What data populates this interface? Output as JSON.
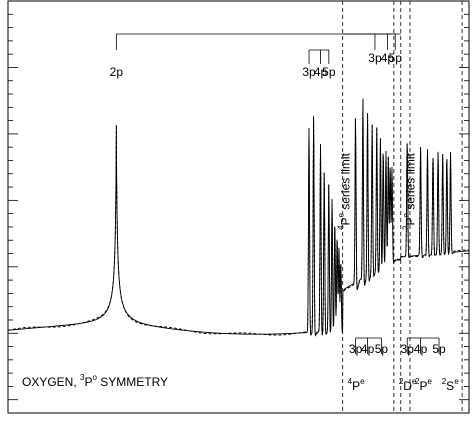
{
  "chart_data": {
    "type": "line",
    "title": "",
    "xlabel": "",
    "ylabel": "",
    "axes": {
      "frame": "box",
      "x_tick_labels": false,
      "y_tick_labels": false,
      "grid": false
    },
    "caption": {
      "text": "OXYGEN, ",
      "sup": "3",
      "state": "P",
      "sup2": "o",
      "suffix": " SYMMETRY"
    },
    "series": [
      {
        "style": "solid",
        "description_color": "#000000"
      },
      {
        "style": "dashed",
        "description_color": "#000000"
      }
    ],
    "main_peak": {
      "label": "2p",
      "x": 0.235,
      "height": 0.83
    },
    "rydberg_ladder_top": {
      "labels": [
        "3p",
        "4p",
        "5p"
      ],
      "x": [
        0.653,
        0.678,
        0.696
      ]
    },
    "rydberg_ladder_right": {
      "labels": [
        "3p",
        "4p",
        "5p"
      ],
      "x": [
        0.796,
        0.823,
        0.84
      ]
    },
    "ladder_bottom_left": {
      "labels": [
        "3p",
        "4p",
        "5p"
      ],
      "x": [
        0.754,
        0.78,
        0.81
      ]
    },
    "ladder_bottom_right": {
      "labels": [
        "3p",
        "4p",
        "5p"
      ],
      "x": [
        0.866,
        0.895,
        0.935
      ]
    },
    "threshold_lines": [
      {
        "x": 0.726,
        "style": "dashed"
      },
      {
        "x": 0.837,
        "style": "dashed"
      },
      {
        "x": 0.852,
        "style": "dashed"
      },
      {
        "x": 0.872,
        "style": "dashed"
      },
      {
        "x": 0.985,
        "style": "dashed"
      }
    ],
    "series_limit_labels": [
      {
        "sup": "4",
        "state": "P",
        "sup2": "e",
        "text": " series  limit",
        "x": 0.741
      },
      {
        "sup": "2",
        "state": "P",
        "sup2": "e",
        "text": " series  limit",
        "x": 0.882
      }
    ],
    "threshold_labels": [
      {
        "sup": "4",
        "state": "P",
        "sup2": "e",
        "x": 0.726
      },
      {
        "sup": "2",
        "state": "D",
        "sup2": "e",
        "x": 0.837
      },
      {
        "sup": "2",
        "state": "P",
        "sup2": "e",
        "x": 0.872
      },
      {
        "sup": "2",
        "state": "S",
        "sup2": "e",
        "x": 0.93
      }
    ],
    "resonances": [
      {
        "x": 0.653,
        "height": 0.72,
        "dip": 0.04
      },
      {
        "x": 0.663,
        "height": 0.76,
        "dip": 0.05
      },
      {
        "x": 0.678,
        "height": 0.66,
        "dip": 0.05
      },
      {
        "x": 0.686,
        "height": 0.58,
        "dip": 0.04
      },
      {
        "x": 0.696,
        "height": 0.53,
        "dip": 0.04
      },
      {
        "x": 0.703,
        "height": 0.47,
        "dip": 0.04
      },
      {
        "x": 0.709,
        "height": 0.4,
        "dip": 0.03
      },
      {
        "x": 0.714,
        "height": 0.35,
        "dip": 0.03
      },
      {
        "x": 0.718,
        "height": 0.3,
        "dip": 0.02
      },
      {
        "x": 0.722,
        "height": 0.26,
        "dip": 0.02
      },
      {
        "x": 0.754,
        "height": 0.62,
        "dip": 0.1
      },
      {
        "x": 0.77,
        "height": 0.63,
        "dip": 0.1
      },
      {
        "x": 0.78,
        "height": 0.57,
        "dip": 0.08
      },
      {
        "x": 0.79,
        "height": 0.52,
        "dip": 0.06
      },
      {
        "x": 0.8,
        "height": 0.5,
        "dip": 0.05
      },
      {
        "x": 0.808,
        "height": 0.46,
        "dip": 0.05
      },
      {
        "x": 0.814,
        "height": 0.43,
        "dip": 0.04
      },
      {
        "x": 0.82,
        "height": 0.4,
        "dip": 0.04
      },
      {
        "x": 0.825,
        "height": 0.38,
        "dip": 0.03
      },
      {
        "x": 0.829,
        "height": 0.36,
        "dip": 0.03
      },
      {
        "x": 0.833,
        "height": 0.34,
        "dip": 0.03
      },
      {
        "x": 0.866,
        "height": 0.41,
        "dip": 0.02
      },
      {
        "x": 0.895,
        "height": 0.38,
        "dip": 0.02
      },
      {
        "x": 0.91,
        "height": 0.37,
        "dip": 0.02
      },
      {
        "x": 0.922,
        "height": 0.36,
        "dip": 0.02
      },
      {
        "x": 0.933,
        "height": 0.36,
        "dip": 0.02
      },
      {
        "x": 0.943,
        "height": 0.35,
        "dip": 0.02
      },
      {
        "x": 0.952,
        "height": 0.35,
        "dip": 0.02
      },
      {
        "x": 0.96,
        "height": 0.35,
        "dip": 0.02
      }
    ]
  }
}
